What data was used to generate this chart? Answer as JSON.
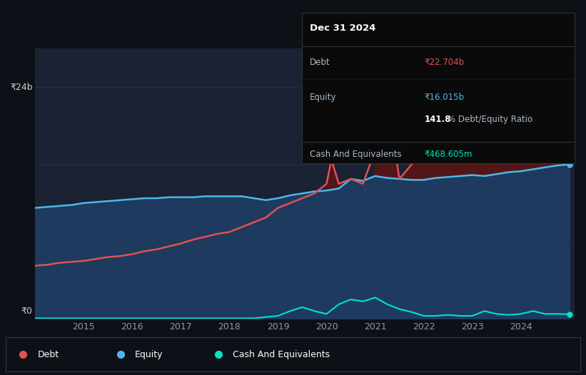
{
  "bg_color": "#0d1117",
  "plot_bg_color": "#1a2233",
  "title_date": "Dec 31 2024",
  "debt_label": "Debt",
  "equity_label": "Equity",
  "cash_label": "Cash And Equivalents",
  "debt_value": "₹22.704b",
  "equity_value": "₹16.015b",
  "ratio_text": "141.8% Debt/Equity Ratio",
  "cash_value": "₹468.605m",
  "debt_color": "#e05252",
  "equity_color": "#4db8e8",
  "cash_color": "#00e5c0",
  "y_label_top": "₹24b",
  "y_label_bottom": "₹0",
  "x_ticks": [
    2015,
    2016,
    2017,
    2018,
    2019,
    2020,
    2021,
    2022,
    2023,
    2024
  ],
  "debt_x": [
    2014.0,
    2014.25,
    2014.5,
    2014.75,
    2015.0,
    2015.25,
    2015.5,
    2015.75,
    2016.0,
    2016.25,
    2016.5,
    2016.75,
    2017.0,
    2017.25,
    2017.5,
    2017.75,
    2018.0,
    2018.25,
    2018.5,
    2018.75,
    2019.0,
    2019.25,
    2019.5,
    2019.75,
    2020.0,
    2020.1,
    2020.25,
    2020.5,
    2020.75,
    2021.0,
    2021.25,
    2021.5,
    2021.75,
    2022.0,
    2022.25,
    2022.5,
    2022.75,
    2023.0,
    2023.25,
    2023.5,
    2023.75,
    2024.0,
    2024.25,
    2024.5,
    2024.75,
    2025.0
  ],
  "debt_y": [
    5.5,
    5.6,
    5.8,
    5.9,
    6.0,
    6.2,
    6.4,
    6.5,
    6.7,
    7.0,
    7.2,
    7.5,
    7.8,
    8.2,
    8.5,
    8.8,
    9.0,
    9.5,
    10.0,
    10.5,
    11.5,
    12.0,
    12.5,
    13.0,
    14.0,
    16.5,
    14.0,
    14.5,
    14.0,
    17.5,
    22.5,
    14.5,
    16.0,
    17.0,
    23.0,
    16.5,
    17.5,
    18.0,
    23.5,
    20.0,
    22.0,
    22.0,
    26.0,
    21.5,
    24.0,
    22.7
  ],
  "equity_x": [
    2014.0,
    2014.25,
    2014.5,
    2014.75,
    2015.0,
    2015.25,
    2015.5,
    2015.75,
    2016.0,
    2016.25,
    2016.5,
    2016.75,
    2017.0,
    2017.25,
    2017.5,
    2017.75,
    2018.0,
    2018.25,
    2018.5,
    2018.75,
    2019.0,
    2019.25,
    2019.5,
    2019.75,
    2020.0,
    2020.25,
    2020.5,
    2020.75,
    2021.0,
    2021.25,
    2021.5,
    2021.75,
    2022.0,
    2022.25,
    2022.5,
    2022.75,
    2023.0,
    2023.25,
    2023.5,
    2023.75,
    2024.0,
    2024.25,
    2024.5,
    2024.75,
    2025.0
  ],
  "equity_y": [
    11.5,
    11.6,
    11.7,
    11.8,
    12.0,
    12.1,
    12.2,
    12.3,
    12.4,
    12.5,
    12.5,
    12.6,
    12.6,
    12.6,
    12.7,
    12.7,
    12.7,
    12.7,
    12.5,
    12.3,
    12.5,
    12.8,
    13.0,
    13.2,
    13.3,
    13.5,
    14.5,
    14.3,
    14.8,
    14.6,
    14.5,
    14.4,
    14.4,
    14.6,
    14.7,
    14.8,
    14.9,
    14.8,
    15.0,
    15.2,
    15.3,
    15.5,
    15.7,
    15.9,
    16.0
  ],
  "cash_x": [
    2014.0,
    2014.5,
    2015.0,
    2015.5,
    2016.0,
    2016.5,
    2017.0,
    2017.5,
    2018.0,
    2018.5,
    2019.0,
    2019.25,
    2019.5,
    2019.75,
    2020.0,
    2020.1,
    2020.25,
    2020.5,
    2020.75,
    2021.0,
    2021.25,
    2021.5,
    2021.75,
    2022.0,
    2022.25,
    2022.5,
    2022.75,
    2023.0,
    2023.25,
    2023.5,
    2023.75,
    2024.0,
    2024.25,
    2024.5,
    2024.75,
    2025.0
  ],
  "cash_y": [
    0.05,
    0.05,
    0.05,
    0.05,
    0.05,
    0.05,
    0.05,
    0.05,
    0.05,
    0.05,
    0.3,
    0.8,
    1.2,
    0.8,
    0.5,
    0.9,
    1.5,
    2.0,
    1.8,
    2.2,
    1.5,
    1.0,
    0.7,
    0.3,
    0.3,
    0.4,
    0.3,
    0.3,
    0.8,
    0.5,
    0.4,
    0.5,
    0.8,
    0.5,
    0.5,
    0.47
  ],
  "ylim": [
    0,
    28
  ],
  "xlim": [
    2014.0,
    2025.1
  ],
  "equity_fill_color": "#1e3a5f",
  "debt_fill_color": "#5a1515",
  "tooltip_bg": "#0a0a0a",
  "tooltip_border": "#333333"
}
